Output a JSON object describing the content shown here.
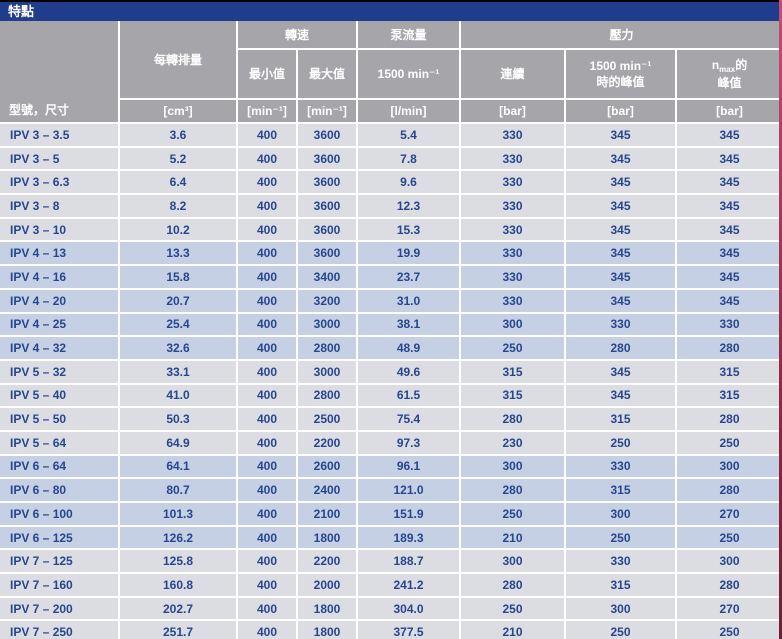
{
  "title_bar": {
    "label": "特點"
  },
  "colors": {
    "title_bg": "#203c8c",
    "header_bg": "#a6a6aa",
    "row_light": "#dcdce3",
    "row_blue": "#c6d0e5",
    "data_text": "#27468e",
    "page_edge_strip": "#8e2a42"
  },
  "table": {
    "corner_label": "型號，尺寸",
    "displacement_label": "每轉排量",
    "groups": {
      "speed": "轉速",
      "flow": "泵流量",
      "pressure": "壓力"
    },
    "subheaders": {
      "speed_min": "最小值",
      "speed_max": "最大值",
      "flow_at": "1500 min⁻¹",
      "pressure_continuous": "連續",
      "peak_1500_line1": "1500 min⁻¹",
      "peak_1500_line2": "時的峰值",
      "peak_nmax_pre": "n",
      "peak_nmax_sub": "max",
      "peak_nmax_post": "的",
      "peak_nmax_line2": "峰值"
    },
    "units": {
      "displacement": "[cm³]",
      "speed_min": "[min⁻¹]",
      "speed_max": "[min⁻¹]",
      "flow": "[l/min]",
      "pressure_continuous": "[bar]",
      "peak_1500": "[bar]",
      "peak_nmax": "[bar]"
    },
    "rows": [
      {
        "model": "IPV 3 – 3.5",
        "displacement": "3.6",
        "speed_min": "400",
        "speed_max": "3600",
        "flow": "5.4",
        "pressure_continuous": "330",
        "peak_1500": "345",
        "peak_nmax": "345",
        "shade": "light"
      },
      {
        "model": "IPV 3 – 5",
        "displacement": "5.2",
        "speed_min": "400",
        "speed_max": "3600",
        "flow": "7.8",
        "pressure_continuous": "330",
        "peak_1500": "345",
        "peak_nmax": "345",
        "shade": "light"
      },
      {
        "model": "IPV 3 – 6.3",
        "displacement": "6.4",
        "speed_min": "400",
        "speed_max": "3600",
        "flow": "9.6",
        "pressure_continuous": "330",
        "peak_1500": "345",
        "peak_nmax": "345",
        "shade": "light"
      },
      {
        "model": "IPV 3 – 8",
        "displacement": "8.2",
        "speed_min": "400",
        "speed_max": "3600",
        "flow": "12.3",
        "pressure_continuous": "330",
        "peak_1500": "345",
        "peak_nmax": "345",
        "shade": "light"
      },
      {
        "model": "IPV 3 – 10",
        "displacement": "10.2",
        "speed_min": "400",
        "speed_max": "3600",
        "flow": "15.3",
        "pressure_continuous": "330",
        "peak_1500": "345",
        "peak_nmax": "345",
        "shade": "light"
      },
      {
        "model": "IPV 4 – 13",
        "displacement": "13.3",
        "speed_min": "400",
        "speed_max": "3600",
        "flow": "19.9",
        "pressure_continuous": "330",
        "peak_1500": "345",
        "peak_nmax": "345",
        "shade": "blue"
      },
      {
        "model": "IPV 4 – 16",
        "displacement": "15.8",
        "speed_min": "400",
        "speed_max": "3400",
        "flow": "23.7",
        "pressure_continuous": "330",
        "peak_1500": "345",
        "peak_nmax": "345",
        "shade": "blue"
      },
      {
        "model": "IPV 4 – 20",
        "displacement": "20.7",
        "speed_min": "400",
        "speed_max": "3200",
        "flow": "31.0",
        "pressure_continuous": "330",
        "peak_1500": "345",
        "peak_nmax": "345",
        "shade": "blue"
      },
      {
        "model": "IPV 4 – 25",
        "displacement": "25.4",
        "speed_min": "400",
        "speed_max": "3000",
        "flow": "38.1",
        "pressure_continuous": "300",
        "peak_1500": "330",
        "peak_nmax": "330",
        "shade": "blue"
      },
      {
        "model": "IPV 4 – 32",
        "displacement": "32.6",
        "speed_min": "400",
        "speed_max": "2800",
        "flow": "48.9",
        "pressure_continuous": "250",
        "peak_1500": "280",
        "peak_nmax": "280",
        "shade": "blue"
      },
      {
        "model": "IPV 5 – 32",
        "displacement": "33.1",
        "speed_min": "400",
        "speed_max": "3000",
        "flow": "49.6",
        "pressure_continuous": "315",
        "peak_1500": "345",
        "peak_nmax": "315",
        "shade": "light"
      },
      {
        "model": "IPV 5 – 40",
        "displacement": "41.0",
        "speed_min": "400",
        "speed_max": "2800",
        "flow": "61.5",
        "pressure_continuous": "315",
        "peak_1500": "345",
        "peak_nmax": "315",
        "shade": "light"
      },
      {
        "model": "IPV 5 – 50",
        "displacement": "50.3",
        "speed_min": "400",
        "speed_max": "2500",
        "flow": "75.4",
        "pressure_continuous": "280",
        "peak_1500": "315",
        "peak_nmax": "280",
        "shade": "light"
      },
      {
        "model": "IPV 5 – 64",
        "displacement": "64.9",
        "speed_min": "400",
        "speed_max": "2200",
        "flow": "97.3",
        "pressure_continuous": "230",
        "peak_1500": "250",
        "peak_nmax": "250",
        "shade": "light"
      },
      {
        "model": "IPV 6 – 64",
        "displacement": "64.1",
        "speed_min": "400",
        "speed_max": "2600",
        "flow": "96.1",
        "pressure_continuous": "300",
        "peak_1500": "330",
        "peak_nmax": "300",
        "shade": "blue"
      },
      {
        "model": "IPV 6 – 80",
        "displacement": "80.7",
        "speed_min": "400",
        "speed_max": "2400",
        "flow": "121.0",
        "pressure_continuous": "280",
        "peak_1500": "315",
        "peak_nmax": "280",
        "shade": "blue"
      },
      {
        "model": "IPV 6 – 100",
        "displacement": "101.3",
        "speed_min": "400",
        "speed_max": "2100",
        "flow": "151.9",
        "pressure_continuous": "250",
        "peak_1500": "300",
        "peak_nmax": "270",
        "shade": "blue"
      },
      {
        "model": "IPV 6 – 125",
        "displacement": "126.2",
        "speed_min": "400",
        "speed_max": "1800",
        "flow": "189.3",
        "pressure_continuous": "210",
        "peak_1500": "250",
        "peak_nmax": "250",
        "shade": "blue"
      },
      {
        "model": "IPV 7 – 125",
        "displacement": "125.8",
        "speed_min": "400",
        "speed_max": "2200",
        "flow": "188.7",
        "pressure_continuous": "300",
        "peak_1500": "330",
        "peak_nmax": "300",
        "shade": "light"
      },
      {
        "model": "IPV 7 – 160",
        "displacement": "160.8",
        "speed_min": "400",
        "speed_max": "2000",
        "flow": "241.2",
        "pressure_continuous": "280",
        "peak_1500": "315",
        "peak_nmax": "280",
        "shade": "light"
      },
      {
        "model": "IPV 7 – 200",
        "displacement": "202.7",
        "speed_min": "400",
        "speed_max": "1800",
        "flow": "304.0",
        "pressure_continuous": "250",
        "peak_1500": "300",
        "peak_nmax": "270",
        "shade": "light"
      },
      {
        "model": "IPV 7 – 250",
        "displacement": "251.7",
        "speed_min": "400",
        "speed_max": "1800",
        "flow": "377.5",
        "pressure_continuous": "210",
        "peak_1500": "250",
        "peak_nmax": "250",
        "shade": "light"
      }
    ]
  }
}
